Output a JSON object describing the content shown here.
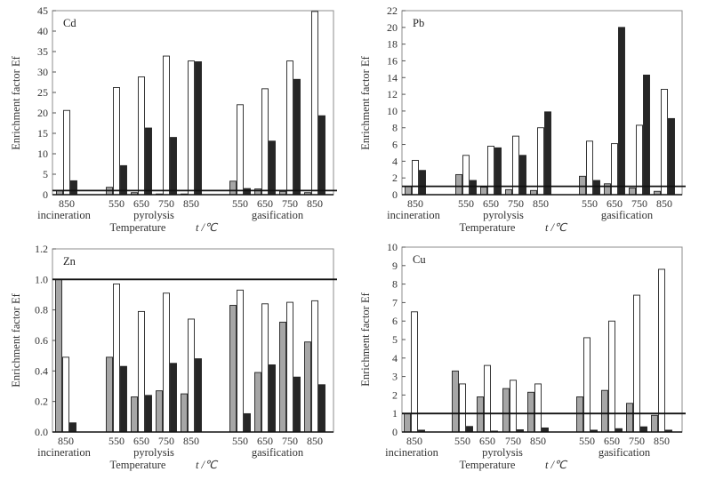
{
  "chart_data": [
    {
      "type": "bar",
      "title": "Cd",
      "ylabel": "Enrichment factor Ef",
      "xlabel": "Temperature",
      "xunit": "t /℃",
      "ylim": [
        0,
        45
      ],
      "yticks": [
        0,
        5,
        10,
        15,
        20,
        25,
        30,
        35,
        40,
        45
      ],
      "reference_line": 1,
      "groups": [
        {
          "label": "incineration",
          "categories": [
            "850"
          ]
        },
        {
          "label": "pyrolysis",
          "categories": [
            "550",
            "650",
            "750",
            "850"
          ]
        },
        {
          "label": "gasification",
          "categories": [
            "550",
            "650",
            "750",
            "850"
          ]
        }
      ],
      "categories": [
        "incineration 850",
        "pyrolysis 550",
        "pyrolysis 650",
        "pyrolysis 750",
        "pyrolysis 850",
        "gasification 550",
        "gasification 650",
        "gasification 750",
        "gasification 850"
      ],
      "series": [
        {
          "name": "gray",
          "color": "#a6a6a6",
          "values": [
            1.0,
            1.8,
            0.5,
            0.1,
            0.1,
            3.3,
            1.4,
            0.8,
            0.5
          ]
        },
        {
          "name": "white",
          "color": "#ffffff",
          "values": [
            20.6,
            26.2,
            28.8,
            33.9,
            32.7,
            22.0,
            25.9,
            32.7,
            44.8
          ]
        },
        {
          "name": "black",
          "color": "#262626",
          "values": [
            3.4,
            7.1,
            16.3,
            14.0,
            32.5,
            1.5,
            13.1,
            28.2,
            19.3
          ]
        }
      ]
    },
    {
      "type": "bar",
      "title": "Pb",
      "ylabel": "Enrichment factor Ef",
      "xlabel": "Temperature",
      "xunit": "t /℃",
      "ylim": [
        0,
        22
      ],
      "yticks": [
        0,
        2,
        4,
        6,
        8,
        10,
        12,
        14,
        16,
        18,
        20,
        22
      ],
      "reference_line": 1,
      "groups": [
        {
          "label": "incineration",
          "categories": [
            "850"
          ]
        },
        {
          "label": "pyrolysis",
          "categories": [
            "550",
            "650",
            "750",
            "850"
          ]
        },
        {
          "label": "gasification",
          "categories": [
            "550",
            "650",
            "750",
            "850"
          ]
        }
      ],
      "categories": [
        "incineration 850",
        "pyrolysis 550",
        "pyrolysis 650",
        "pyrolysis 750",
        "pyrolysis 850",
        "gasification 550",
        "gasification 650",
        "gasification 750",
        "gasification 850"
      ],
      "series": [
        {
          "name": "gray",
          "color": "#a6a6a6",
          "values": [
            1.0,
            2.4,
            0.9,
            0.6,
            0.5,
            2.2,
            1.3,
            0.8,
            0.4
          ]
        },
        {
          "name": "white",
          "color": "#ffffff",
          "values": [
            4.1,
            4.7,
            5.8,
            7.0,
            8.0,
            6.4,
            6.1,
            8.3,
            12.6
          ]
        },
        {
          "name": "black",
          "color": "#262626",
          "values": [
            2.9,
            1.7,
            5.6,
            4.7,
            9.9,
            1.7,
            20.0,
            14.3,
            9.1
          ]
        }
      ]
    },
    {
      "type": "bar",
      "title": "Zn",
      "ylabel": "Enrichment factor Ef",
      "xlabel": "Temperature",
      "xunit": "t /℃",
      "ylim": [
        0,
        1.2
      ],
      "yticks": [
        "0.0",
        "0.2",
        "0.4",
        "0.6",
        "0.8",
        "1.0",
        "1.2"
      ],
      "reference_line": 1,
      "groups": [
        {
          "label": "incineration",
          "categories": [
            "850"
          ]
        },
        {
          "label": "pyrolysis",
          "categories": [
            "550",
            "650",
            "750",
            "850"
          ]
        },
        {
          "label": "gasification",
          "categories": [
            "550",
            "650",
            "750",
            "850"
          ]
        }
      ],
      "categories": [
        "incineration 850",
        "pyrolysis 550",
        "pyrolysis 650",
        "pyrolysis 750",
        "pyrolysis 850",
        "gasification 550",
        "gasification 650",
        "gasification 750",
        "gasification 850"
      ],
      "series": [
        {
          "name": "gray",
          "color": "#a6a6a6",
          "values": [
            1.0,
            0.49,
            0.23,
            0.27,
            0.25,
            0.83,
            0.39,
            0.72,
            0.59
          ]
        },
        {
          "name": "white",
          "color": "#ffffff",
          "values": [
            0.49,
            0.97,
            0.79,
            0.91,
            0.74,
            0.93,
            0.84,
            0.85,
            0.86
          ]
        },
        {
          "name": "black",
          "color": "#262626",
          "values": [
            0.06,
            0.43,
            0.24,
            0.45,
            0.48,
            0.12,
            0.44,
            0.36,
            0.31
          ]
        }
      ]
    },
    {
      "type": "bar",
      "title": "Cu",
      "ylabel": "Enrichment factor Ef",
      "xlabel": "Temperature",
      "xunit": "t /℃",
      "ylim": [
        0,
        10
      ],
      "yticks": [
        0,
        1,
        2,
        3,
        4,
        5,
        6,
        7,
        8,
        9,
        10
      ],
      "reference_line": 1,
      "groups": [
        {
          "label": "incineration",
          "categories": [
            "850"
          ]
        },
        {
          "label": "pyrolysis",
          "categories": [
            "550",
            "650",
            "750",
            "850"
          ]
        },
        {
          "label": "gasification",
          "categories": [
            "550",
            "650",
            "750",
            "850"
          ]
        }
      ],
      "categories": [
        "incineration 850",
        "pyrolysis 550",
        "pyrolysis 650",
        "pyrolysis 750",
        "pyrolysis 850",
        "gasification 550",
        "gasification 650",
        "gasification 750",
        "gasification 850"
      ],
      "series": [
        {
          "name": "gray",
          "color": "#a6a6a6",
          "values": [
            1.0,
            3.3,
            1.9,
            2.35,
            2.15,
            1.9,
            2.25,
            1.55,
            0.9
          ]
        },
        {
          "name": "white",
          "color": "#ffffff",
          "values": [
            6.5,
            2.6,
            3.6,
            2.8,
            2.6,
            5.1,
            6.0,
            7.4,
            8.8
          ]
        },
        {
          "name": "black",
          "color": "#262626",
          "values": [
            0.1,
            0.3,
            0.05,
            0.12,
            0.22,
            0.1,
            0.18,
            0.28,
            0.1
          ]
        }
      ]
    }
  ]
}
